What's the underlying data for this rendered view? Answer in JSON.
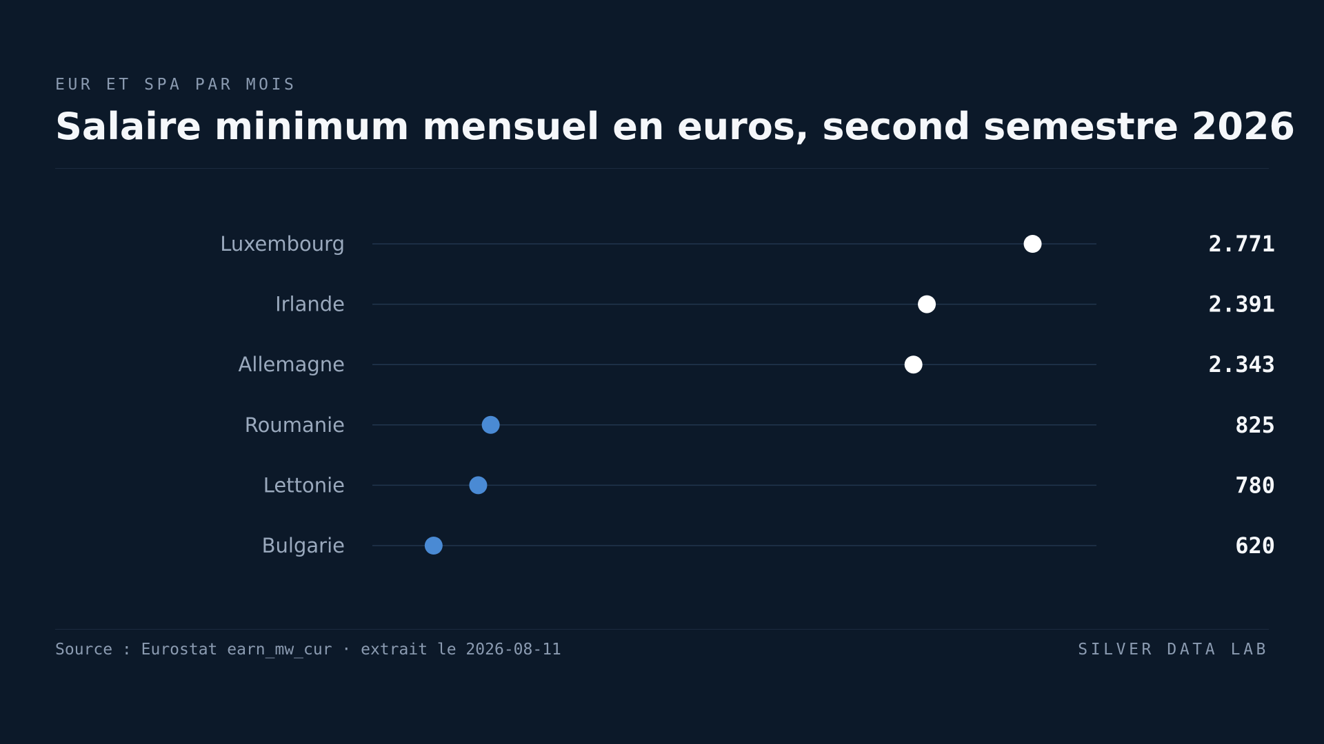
{
  "header": {
    "kicker": "EUR ET SPA PAR MOIS",
    "title": "Salaire minimum mensuel en euros, second semestre 2026"
  },
  "footer": {
    "source": "Source : Eurostat earn_mw_cur · extrait le 2026-08-11",
    "brand": "SILVER DATA LAB"
  },
  "colors": {
    "background": "#0c1929",
    "track": "#22364e",
    "high_dot": "#ffffff",
    "low_dot": "#4a8ad4",
    "label": "#9aa9bd",
    "value": "#f5f7fa"
  },
  "chart_data": {
    "type": "dot",
    "title": "Salaire minimum mensuel en euros, second semestre 2026",
    "categories": [
      "Luxembourg",
      "Irlande",
      "Allemagne",
      "Roumanie",
      "Lettonie",
      "Bulgarie"
    ],
    "values": [
      2771,
      2391,
      2343,
      825,
      780,
      620
    ],
    "value_labels": [
      "2.771",
      "2.391",
      "2.343",
      "825",
      "780",
      "620"
    ],
    "groups": [
      "high",
      "high",
      "high",
      "low",
      "low",
      "low"
    ],
    "xlim": [
      400,
      3000
    ],
    "grid": false,
    "legend": "none"
  }
}
